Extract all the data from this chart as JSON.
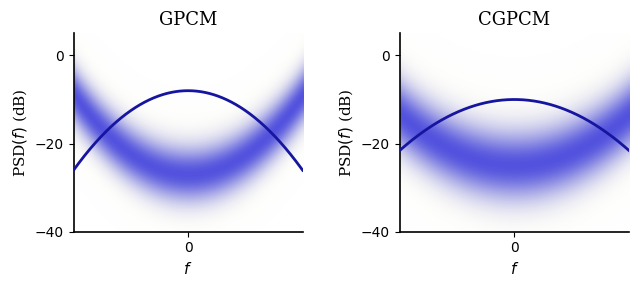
{
  "title_left": "GPCM",
  "title_right": "CGPCM",
  "ylabel": "PSD$(f)$ (dB)",
  "xlabel": "$f$",
  "ylim": [
    -40,
    5
  ],
  "xlim": [
    -1.5,
    1.5
  ],
  "yticks": [
    -40,
    -20,
    0
  ],
  "xticks": [
    0
  ],
  "gpcm_peak_db": -8,
  "gpcm_sigma": 0.52,
  "cgpcm_peak_db": -10,
  "cgpcm_sigma": 0.65,
  "cgpcm_floor": -28,
  "line_color": "#1515a0",
  "band_color": "#2222cc",
  "bg_color": "#ffffff",
  "title_fontsize": 13,
  "label_fontsize": 11,
  "tick_fontsize": 10
}
